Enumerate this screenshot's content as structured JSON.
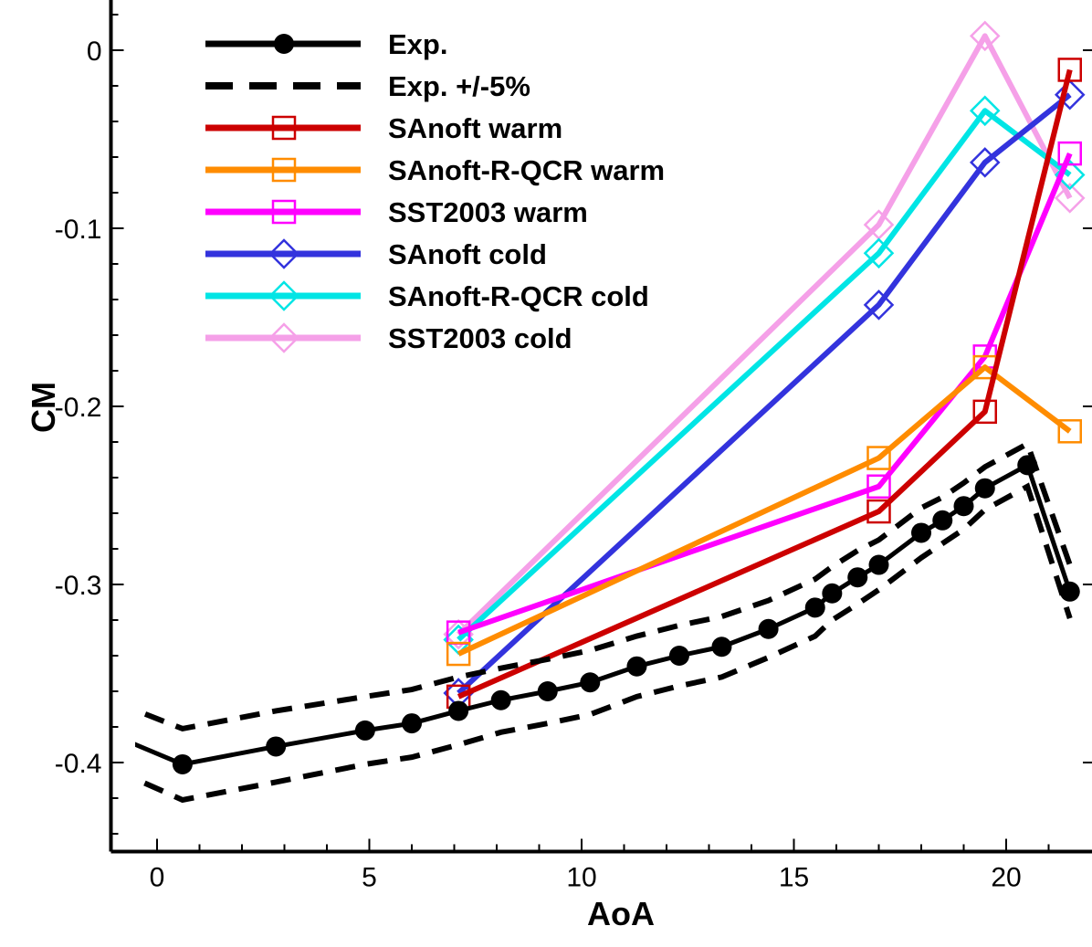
{
  "chart_data": {
    "type": "line",
    "xlabel": "AoA",
    "ylabel": "CM",
    "xlim": [
      -1,
      21.9
    ],
    "ylim": [
      -0.45,
      0.03
    ],
    "x_ticks": [
      0,
      5,
      10,
      15,
      20
    ],
    "x_tick_labels": [
      "0",
      "5",
      "10",
      "15",
      "20"
    ],
    "y_ticks": [
      0,
      -0.1,
      -0.2,
      -0.3,
      -0.4
    ],
    "y_tick_labels": [
      "0",
      "-0.1",
      "-0.2",
      "-0.3",
      "-0.4"
    ],
    "legend_position": "top-left",
    "series": [
      {
        "name": "Exp.",
        "color": "#000000",
        "marker": "circle",
        "style": "solid",
        "x": [
          -1.0,
          0.6,
          2.8,
          4.9,
          6.0,
          7.1,
          8.1,
          9.2,
          10.2,
          11.3,
          12.3,
          13.3,
          14.4,
          15.5,
          15.9,
          16.5,
          17.0,
          18.0,
          18.5,
          19.0,
          19.5,
          20.5,
          21.5
        ],
        "y": [
          -0.385,
          -0.401,
          -0.391,
          -0.382,
          -0.378,
          -0.371,
          -0.365,
          -0.36,
          -0.355,
          -0.346,
          -0.34,
          -0.335,
          -0.325,
          -0.313,
          -0.305,
          -0.296,
          -0.289,
          -0.271,
          -0.264,
          -0.256,
          -0.246,
          -0.233,
          -0.304
        ],
        "markers_from": 1
      },
      {
        "name": "Exp. +/-5%",
        "color": "#000000",
        "marker": "none",
        "style": "dashed",
        "x": [
          -1.0,
          0.6,
          2.8,
          4.9,
          6.0,
          7.1,
          8.1,
          9.2,
          10.2,
          11.3,
          12.3,
          13.3,
          14.4,
          15.5,
          15.9,
          16.5,
          17.0,
          18.0,
          18.5,
          19.0,
          19.5,
          20.5,
          21.5
        ],
        "upper": [
          -0.366,
          -0.381,
          -0.371,
          -0.363,
          -0.359,
          -0.352,
          -0.347,
          -0.342,
          -0.337,
          -0.329,
          -0.323,
          -0.318,
          -0.309,
          -0.297,
          -0.29,
          -0.281,
          -0.275,
          -0.257,
          -0.251,
          -0.243,
          -0.234,
          -0.221,
          -0.289
        ],
        "lower": [
          -0.404,
          -0.421,
          -0.411,
          -0.401,
          -0.397,
          -0.39,
          -0.383,
          -0.378,
          -0.373,
          -0.363,
          -0.357,
          -0.352,
          -0.341,
          -0.329,
          -0.32,
          -0.311,
          -0.303,
          -0.285,
          -0.277,
          -0.269,
          -0.258,
          -0.245,
          -0.319
        ]
      },
      {
        "name": "SAnoft warm",
        "color": "#cc0000",
        "marker": "square",
        "style": "solid",
        "x": [
          7.1,
          17.0,
          19.5,
          21.5
        ],
        "y": [
          -0.363,
          -0.259,
          -0.203,
          -0.011
        ]
      },
      {
        "name": "SAnoft-R-QCR warm",
        "color": "#ff8c00",
        "marker": "square",
        "style": "solid",
        "x": [
          7.1,
          17.0,
          19.5,
          21.5
        ],
        "y": [
          -0.339,
          -0.229,
          -0.178,
          -0.214
        ]
      },
      {
        "name": "SST2003 warm",
        "color": "#ff00ff",
        "marker": "square",
        "style": "solid",
        "x": [
          7.1,
          17.0,
          19.5,
          21.5
        ],
        "y": [
          -0.327,
          -0.245,
          -0.172,
          -0.058
        ]
      },
      {
        "name": "SAnoft cold",
        "color": "#3333dd",
        "marker": "diamond",
        "style": "solid",
        "x": [
          7.1,
          17.0,
          19.5,
          21.5
        ],
        "y": [
          -0.361,
          -0.143,
          -0.063,
          -0.025
        ]
      },
      {
        "name": "SAnoft-R-QCR cold",
        "color": "#00e5e5",
        "marker": "diamond",
        "style": "solid",
        "x": [
          7.1,
          17.0,
          19.5,
          21.5
        ],
        "y": [
          -0.331,
          -0.114,
          -0.034,
          -0.07
        ]
      },
      {
        "name": "SST2003 cold",
        "color": "#f5a0e8",
        "marker": "diamond",
        "style": "solid",
        "x": [
          7.1,
          17.0,
          19.5,
          21.5
        ],
        "y": [
          -0.328,
          -0.098,
          0.008,
          -0.083
        ]
      }
    ]
  }
}
